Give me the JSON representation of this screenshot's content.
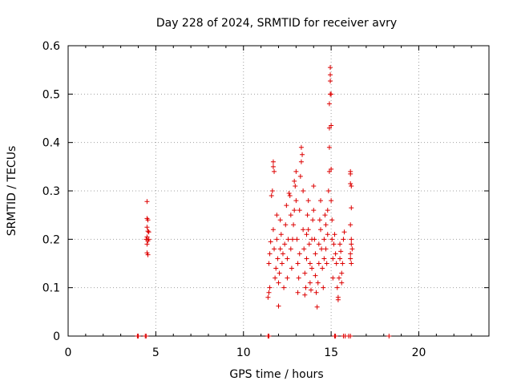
{
  "chart_data": {
    "type": "scatter",
    "title": "Day 228 of 2024, SRMTID for receiver avry",
    "xlabel": "GPS time / hours",
    "ylabel": "SRMTID / TECUs",
    "xlim": [
      0,
      24
    ],
    "ylim": [
      0,
      0.6
    ],
    "xticks": [
      0,
      5,
      10,
      15,
      20
    ],
    "xtick_labels": [
      "0",
      "5",
      "10",
      "15",
      "20"
    ],
    "yticks": [
      0,
      0.1,
      0.2,
      0.3,
      0.4,
      0.5,
      0.6
    ],
    "ytick_labels": [
      "0",
      "0.1",
      "0.2",
      "0.3",
      "0.4",
      "0.5",
      "0.6"
    ],
    "grid": true,
    "marker": "+",
    "color": "#dd0000",
    "series": [
      {
        "name": "SRMTID",
        "points": [
          [
            3.95,
            0
          ],
          [
            4.0,
            0
          ],
          [
            4.4,
            0
          ],
          [
            4.45,
            0
          ],
          [
            11.4,
            0
          ],
          [
            11.45,
            0
          ],
          [
            15.2,
            0
          ],
          [
            15.25,
            0
          ],
          [
            15.7,
            0
          ],
          [
            15.8,
            0
          ],
          [
            16.0,
            0
          ],
          [
            16.1,
            0
          ],
          [
            18.3,
            0
          ],
          [
            4.5,
            0.278
          ],
          [
            4.5,
            0.243
          ],
          [
            4.55,
            0.24
          ],
          [
            4.5,
            0.225
          ],
          [
            4.55,
            0.217
          ],
          [
            4.5,
            0.205
          ],
          [
            4.45,
            0.2
          ],
          [
            4.55,
            0.197
          ],
          [
            4.5,
            0.19
          ],
          [
            4.5,
            0.172
          ],
          [
            4.55,
            0.168
          ],
          [
            4.6,
            0.2
          ],
          [
            4.6,
            0.215
          ],
          [
            11.4,
            0.08
          ],
          [
            11.45,
            0.09
          ],
          [
            11.5,
            0.1
          ],
          [
            11.45,
            0.15
          ],
          [
            11.5,
            0.17
          ],
          [
            11.55,
            0.195
          ],
          [
            11.6,
            0.29
          ],
          [
            11.65,
            0.3
          ],
          [
            11.7,
            0.35
          ],
          [
            11.7,
            0.36
          ],
          [
            11.75,
            0.34
          ],
          [
            11.7,
            0.22
          ],
          [
            11.75,
            0.18
          ],
          [
            11.8,
            0.12
          ],
          [
            11.85,
            0.14
          ],
          [
            11.9,
            0.25
          ],
          [
            11.9,
            0.2
          ],
          [
            11.95,
            0.16
          ],
          [
            12.0,
            0.11
          ],
          [
            12.0,
            0.062
          ],
          [
            12.05,
            0.13
          ],
          [
            12.1,
            0.18
          ],
          [
            12.1,
            0.24
          ],
          [
            12.15,
            0.21
          ],
          [
            12.2,
            0.15
          ],
          [
            12.25,
            0.17
          ],
          [
            12.3,
            0.1
          ],
          [
            12.35,
            0.19
          ],
          [
            12.4,
            0.23
          ],
          [
            12.45,
            0.27
          ],
          [
            12.5,
            0.16
          ],
          [
            12.5,
            0.12
          ],
          [
            12.55,
            0.2
          ],
          [
            12.6,
            0.295
          ],
          [
            12.65,
            0.29
          ],
          [
            12.7,
            0.25
          ],
          [
            12.7,
            0.18
          ],
          [
            12.75,
            0.14
          ],
          [
            12.8,
            0.2
          ],
          [
            12.85,
            0.23
          ],
          [
            12.9,
            0.26
          ],
          [
            12.9,
            0.32
          ],
          [
            12.95,
            0.31
          ],
          [
            13.0,
            0.34
          ],
          [
            13.0,
            0.28
          ],
          [
            13.05,
            0.2
          ],
          [
            13.1,
            0.15
          ],
          [
            13.1,
            0.09
          ],
          [
            13.15,
            0.12
          ],
          [
            13.2,
            0.17
          ],
          [
            13.2,
            0.26
          ],
          [
            13.25,
            0.33
          ],
          [
            13.3,
            0.36
          ],
          [
            13.3,
            0.39
          ],
          [
            13.35,
            0.375
          ],
          [
            13.4,
            0.3
          ],
          [
            13.4,
            0.22
          ],
          [
            13.45,
            0.18
          ],
          [
            13.5,
            0.13
          ],
          [
            13.5,
            0.085
          ],
          [
            13.55,
            0.1
          ],
          [
            13.6,
            0.16
          ],
          [
            13.6,
            0.21
          ],
          [
            13.65,
            0.25
          ],
          [
            13.7,
            0.28
          ],
          [
            13.7,
            0.22
          ],
          [
            13.75,
            0.19
          ],
          [
            13.8,
            0.15
          ],
          [
            13.8,
            0.11
          ],
          [
            13.85,
            0.095
          ],
          [
            13.9,
            0.14
          ],
          [
            13.9,
            0.2
          ],
          [
            13.95,
            0.24
          ],
          [
            14.0,
            0.31
          ],
          [
            14.0,
            0.26
          ],
          [
            14.05,
            0.2
          ],
          [
            14.1,
            0.17
          ],
          [
            14.1,
            0.125
          ],
          [
            14.15,
            0.09
          ],
          [
            14.2,
            0.06
          ],
          [
            14.25,
            0.11
          ],
          [
            14.3,
            0.15
          ],
          [
            14.3,
            0.19
          ],
          [
            14.35,
            0.24
          ],
          [
            14.4,
            0.28
          ],
          [
            14.4,
            0.22
          ],
          [
            14.45,
            0.18
          ],
          [
            14.5,
            0.14
          ],
          [
            14.55,
            0.1
          ],
          [
            14.6,
            0.16
          ],
          [
            14.6,
            0.2
          ],
          [
            14.65,
            0.25
          ],
          [
            14.7,
            0.23
          ],
          [
            14.7,
            0.18
          ],
          [
            14.75,
            0.15
          ],
          [
            14.8,
            0.21
          ],
          [
            14.8,
            0.26
          ],
          [
            14.85,
            0.3
          ],
          [
            14.9,
            0.34
          ],
          [
            14.9,
            0.39
          ],
          [
            14.9,
            0.43
          ],
          [
            14.9,
            0.48
          ],
          [
            14.95,
            0.5
          ],
          [
            14.95,
            0.54
          ],
          [
            14.95,
            0.555
          ],
          [
            14.95,
            0.527
          ],
          [
            15.0,
            0.5
          ],
          [
            15.0,
            0.435
          ],
          [
            15.0,
            0.345
          ],
          [
            15.0,
            0.28
          ],
          [
            15.05,
            0.24
          ],
          [
            15.05,
            0.2
          ],
          [
            15.1,
            0.16
          ],
          [
            15.1,
            0.12
          ],
          [
            15.15,
            0.19
          ],
          [
            15.2,
            0.21
          ],
          [
            15.25,
            0.17
          ],
          [
            15.3,
            0.15
          ],
          [
            15.35,
            0.1
          ],
          [
            15.4,
            0.075
          ],
          [
            15.4,
            0.08
          ],
          [
            15.45,
            0.12
          ],
          [
            15.5,
            0.16
          ],
          [
            15.5,
            0.19
          ],
          [
            15.55,
            0.175
          ],
          [
            15.6,
            0.13
          ],
          [
            15.6,
            0.11
          ],
          [
            15.65,
            0.15
          ],
          [
            15.7,
            0.2
          ],
          [
            15.75,
            0.215
          ],
          [
            16.1,
            0.335
          ],
          [
            16.1,
            0.34
          ],
          [
            16.1,
            0.315
          ],
          [
            16.15,
            0.31
          ],
          [
            16.15,
            0.265
          ],
          [
            16.1,
            0.23
          ],
          [
            16.15,
            0.2
          ],
          [
            16.15,
            0.19
          ],
          [
            16.1,
            0.17
          ],
          [
            16.1,
            0.16
          ],
          [
            16.15,
            0.15
          ],
          [
            16.2,
            0.18
          ]
        ]
      }
    ]
  }
}
